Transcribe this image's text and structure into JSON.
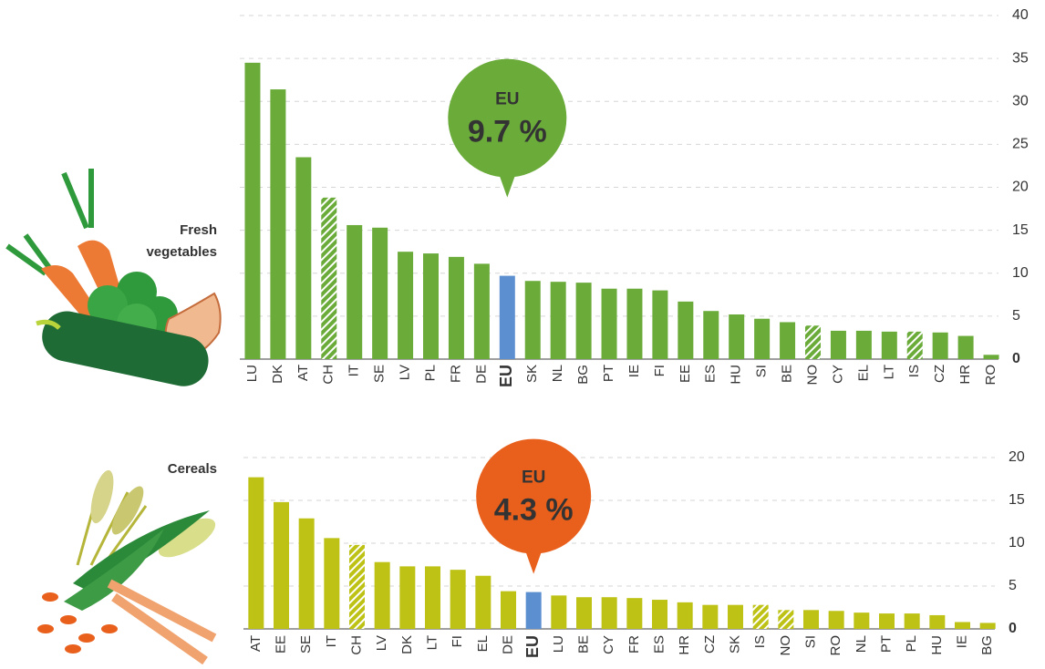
{
  "chart_data": [
    {
      "type": "bar",
      "title_lines": [
        "Fresh",
        "vegetables"
      ],
      "callout": {
        "heading": "EU",
        "text": "9.7 %"
      },
      "callout_color": "#6aab3a",
      "categories": [
        "LU",
        "DK",
        "AT",
        "CH",
        "IT",
        "SE",
        "LV",
        "PL",
        "FR",
        "DE",
        "EU",
        "SK",
        "NL",
        "BG",
        "PT",
        "IE",
        "FI",
        "EE",
        "ES",
        "HU",
        "SI",
        "BE",
        "NO",
        "CY",
        "EL",
        "LT",
        "IS",
        "CZ",
        "HR",
        "RO"
      ],
      "values": [
        34.5,
        31.4,
        23.5,
        18.8,
        15.6,
        15.3,
        12.5,
        12.3,
        11.9,
        11.1,
        9.7,
        9.1,
        9.0,
        8.9,
        8.2,
        8.2,
        8.0,
        6.7,
        5.6,
        5.2,
        4.7,
        4.3,
        3.9,
        3.3,
        3.3,
        3.2,
        3.2,
        3.1,
        2.7,
        0.5
      ],
      "bar_styles": [
        "normal",
        "normal",
        "normal",
        "hatched",
        "normal",
        "normal",
        "normal",
        "normal",
        "normal",
        "normal",
        "highlight",
        "normal",
        "normal",
        "normal",
        "normal",
        "normal",
        "normal",
        "normal",
        "normal",
        "normal",
        "normal",
        "normal",
        "hatched",
        "normal",
        "normal",
        "normal",
        "hatched",
        "normal",
        "normal",
        "normal"
      ],
      "color": "#6aab3a",
      "highlight_color": "#5b8fd0",
      "ylim": [
        0,
        40
      ],
      "yticks": [
        0,
        5,
        10,
        15,
        20,
        25,
        30,
        35,
        40
      ],
      "grid": true
    },
    {
      "type": "bar",
      "title_lines": [
        "Cereals"
      ],
      "callout": {
        "heading": "EU",
        "text": "4.3 %"
      },
      "callout_color": "#e8601c",
      "categories": [
        "AT",
        "EE",
        "SE",
        "IT",
        "CH",
        "LV",
        "DK",
        "LT",
        "FI",
        "EL",
        "DE",
        "EU",
        "LU",
        "BE",
        "CY",
        "FR",
        "ES",
        "HR",
        "CZ",
        "SK",
        "IS",
        "NO",
        "SI",
        "RO",
        "NL",
        "PT",
        "PL",
        "HU",
        "IE",
        "BG"
      ],
      "values": [
        17.7,
        14.8,
        12.9,
        10.6,
        9.8,
        7.8,
        7.3,
        7.3,
        6.9,
        6.2,
        4.4,
        4.3,
        3.9,
        3.7,
        3.7,
        3.6,
        3.4,
        3.1,
        2.8,
        2.8,
        2.8,
        2.2,
        2.2,
        2.1,
        1.9,
        1.8,
        1.8,
        1.6,
        0.8,
        0.7
      ],
      "bar_styles": [
        "normal",
        "normal",
        "normal",
        "normal",
        "hatched",
        "normal",
        "normal",
        "normal",
        "normal",
        "normal",
        "normal",
        "highlight",
        "normal",
        "normal",
        "normal",
        "normal",
        "normal",
        "normal",
        "normal",
        "normal",
        "hatched",
        "hatched",
        "normal",
        "normal",
        "normal",
        "normal",
        "normal",
        "normal",
        "normal",
        "normal"
      ],
      "color": "#bdc215",
      "highlight_color": "#5b8fd0",
      "ylim": [
        0,
        20
      ],
      "yticks": [
        0,
        5,
        10,
        15,
        20
      ],
      "grid": true
    }
  ]
}
